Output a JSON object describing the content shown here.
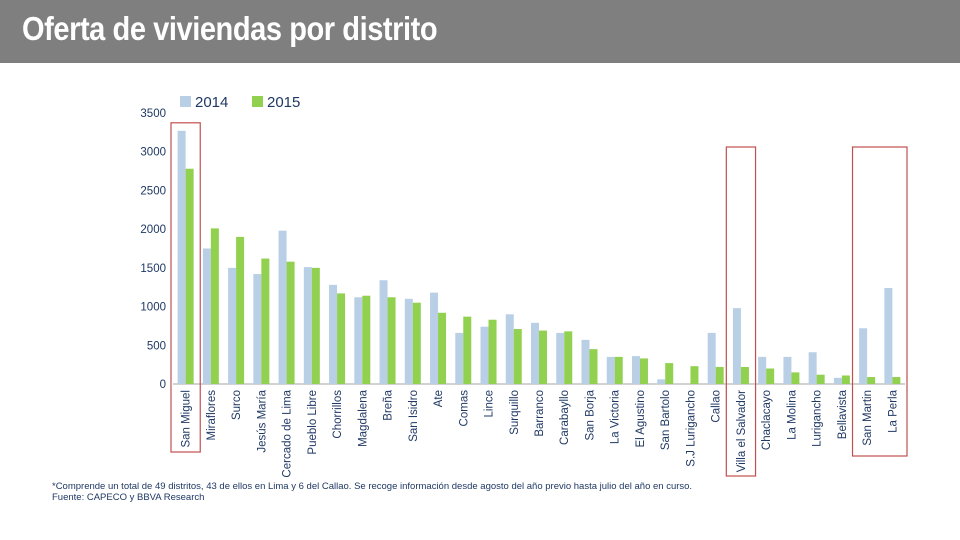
{
  "slide": {
    "title": "Oferta de viviendas por distrito"
  },
  "chart_data": {
    "type": "bar",
    "title": "",
    "xlabel": "",
    "ylabel": "",
    "ylim": [
      0,
      3500
    ],
    "yticks": [
      0,
      500,
      1000,
      1500,
      2000,
      2500,
      3000,
      3500
    ],
    "grid": false,
    "legend_position": "top-left",
    "categories": [
      "San Miguel",
      "Miraflores",
      "Surco",
      "Jesús María",
      "Cercado de Lima",
      "Pueblo Libre",
      "Chorrillos",
      "Magdalena",
      "Breña",
      "San Isidro",
      "Ate",
      "Comas",
      "Lince",
      "Surquillo",
      "Barranco",
      "Carabayllo",
      "San Borja",
      "La Victoria",
      "El Agustino",
      "San Bartolo",
      "S.J Lurigancho",
      "Callao",
      "Villa el Salvador",
      "Chaclacayo",
      "La Molina",
      "Lurigancho",
      "Bellavista",
      "San Martin",
      "La Perla"
    ],
    "series": [
      {
        "name": "2014",
        "color": "#b8cfe6",
        "values": [
          3270,
          1750,
          1500,
          1420,
          1980,
          1510,
          1280,
          1120,
          1340,
          1100,
          1180,
          660,
          740,
          900,
          790,
          660,
          570,
          350,
          360,
          60,
          0,
          660,
          980,
          350,
          350,
          410,
          80,
          720,
          1240
        ]
      },
      {
        "name": "2015",
        "color": "#92d050",
        "values": [
          2780,
          2010,
          1900,
          1620,
          1580,
          1500,
          1170,
          1140,
          1120,
          1050,
          920,
          870,
          830,
          710,
          690,
          680,
          450,
          350,
          330,
          270,
          230,
          220,
          220,
          200,
          150,
          120,
          110,
          90,
          90
        ]
      }
    ],
    "highlighted_categories": [
      "San Miguel",
      "Villa el Salvador",
      "San Martin",
      "La Perla"
    ],
    "highlight_color": "#c0504d"
  },
  "footnotes": {
    "note": "*Comprende un total de 49 distritos, 43 de ellos en Lima y 6 del Callao.    Se recoge información desde agosto del año previo hasta julio del año en curso.",
    "source": "Fuente:  CAPECO y BBVA Research"
  }
}
